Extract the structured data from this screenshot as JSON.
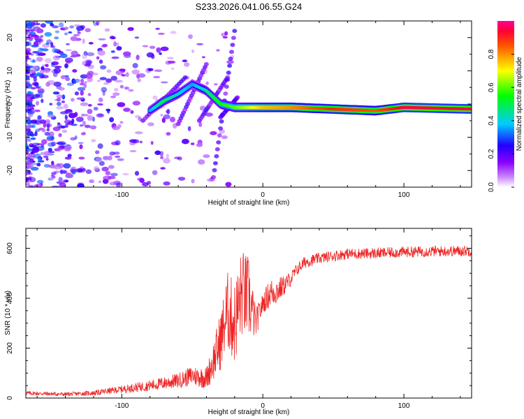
{
  "figure_title": "S233.2026.041.06.55.G24",
  "chart_data": [
    {
      "type": "heatmap",
      "title": "",
      "xlabel": "Height of straight line (km)",
      "ylabel": "Frequency (Hz)",
      "xlim": [
        -168,
        148
      ],
      "ylim": [
        -25,
        25
      ],
      "x_ticks": [
        -100,
        0,
        100
      ],
      "y_ticks": [
        -20,
        -10,
        0,
        10,
        20
      ],
      "colorbar": {
        "label": "Normalized spectral amplitude",
        "range": [
          0.0,
          1.0
        ],
        "ticks": [
          "0.0",
          "0.2",
          "0.4",
          "0.6",
          "0.8"
        ],
        "colors": [
          "#ffffff",
          "#9900ff",
          "#3300ff",
          "#00ffff",
          "#00ff00",
          "#ffff00",
          "#ff6600",
          "#ff0033",
          "#ff0099"
        ]
      },
      "ridge": {
        "description": "strong narrow-band signal",
        "x": [
          -80,
          -70,
          -60,
          -50,
          -40,
          -30,
          -20,
          0,
          20,
          50,
          80,
          100,
          148
        ],
        "freq": [
          -2,
          1,
          3,
          6,
          4,
          0,
          -1,
          -1,
          -1,
          -1.5,
          -2,
          -1,
          -1.5
        ],
        "amplitude": [
          0.35,
          0.5,
          0.4,
          0.35,
          0.45,
          0.55,
          0.6,
          0.75,
          0.8,
          0.9,
          0.85,
          0.95,
          0.95
        ]
      }
    },
    {
      "type": "line",
      "title": "",
      "xlabel": "Height of straight line (km)",
      "ylabel": "SNR (10 * v/v)",
      "xlim": [
        -168,
        148
      ],
      "ylim": [
        0,
        680
      ],
      "x_ticks": [
        -100,
        0,
        100
      ],
      "y_ticks": [
        0,
        200,
        400,
        600
      ],
      "series": [
        {
          "name": "SNR",
          "color": "#ee2222",
          "x": [
            -168,
            -140,
            -120,
            -100,
            -80,
            -60,
            -50,
            -40,
            -35,
            -30,
            -25,
            -20,
            -15,
            -10,
            -5,
            0,
            5,
            10,
            15,
            20,
            25,
            30,
            40,
            50,
            60,
            80,
            100,
            120,
            148
          ],
          "y": [
            20,
            15,
            20,
            35,
            50,
            70,
            90,
            80,
            150,
            230,
            350,
            300,
            420,
            400,
            300,
            380,
            420,
            430,
            450,
            480,
            520,
            545,
            560,
            570,
            578,
            580,
            585,
            588,
            590
          ],
          "noise": [
            8,
            8,
            10,
            15,
            22,
            30,
            40,
            45,
            80,
            120,
            160,
            170,
            180,
            170,
            60,
            40,
            60,
            55,
            40,
            30,
            25,
            25,
            22,
            22,
            22,
            22,
            22,
            22,
            22
          ]
        }
      ]
    }
  ]
}
